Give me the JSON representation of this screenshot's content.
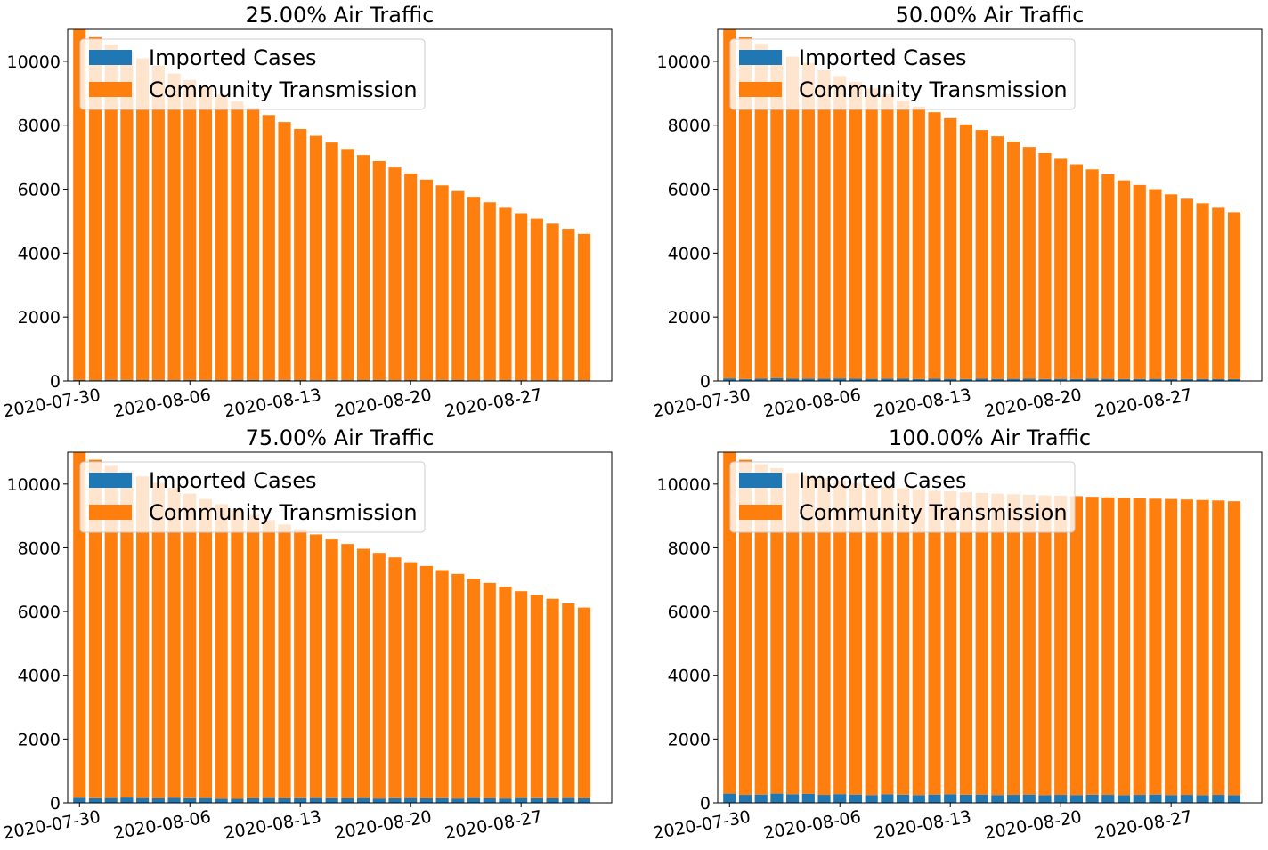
{
  "colors": {
    "imported": "#1f77b4",
    "community": "#ff7f0e",
    "axis": "#000000",
    "legend_bg": "#ffffff"
  },
  "legend": {
    "placement": "upper-left",
    "entries": [
      "Imported Cases",
      "Community Transmission"
    ]
  },
  "chart_data": [
    {
      "type": "bar",
      "stacked": true,
      "title": "25.00% Air Traffic",
      "x": [
        "2020-07-30",
        "2020-07-31",
        "2020-08-01",
        "2020-08-02",
        "2020-08-03",
        "2020-08-04",
        "2020-08-05",
        "2020-08-06",
        "2020-08-07",
        "2020-08-08",
        "2020-08-09",
        "2020-08-10",
        "2020-08-11",
        "2020-08-12",
        "2020-08-13",
        "2020-08-14",
        "2020-08-15",
        "2020-08-16",
        "2020-08-17",
        "2020-08-18",
        "2020-08-19",
        "2020-08-20",
        "2020-08-21",
        "2020-08-22",
        "2020-08-23",
        "2020-08-24",
        "2020-08-25",
        "2020-08-26",
        "2020-08-27",
        "2020-08-28",
        "2020-08-29",
        "2020-08-30",
        "2020-08-31"
      ],
      "xticks": [
        "2020-07-30",
        "2020-08-06",
        "2020-08-13",
        "2020-08-20",
        "2020-08-27"
      ],
      "ylim": [
        0,
        11000
      ],
      "yticks": [
        0,
        2000,
        4000,
        6000,
        8000,
        10000
      ],
      "series": [
        {
          "name": "Imported Cases",
          "values": [
            30,
            25,
            35,
            30,
            28,
            30,
            26,
            32,
            30,
            25,
            28,
            30,
            26,
            30,
            28,
            24,
            30,
            26,
            28,
            30,
            25,
            28,
            26,
            30,
            28,
            24,
            26,
            28,
            25,
            24,
            26,
            22,
            24
          ]
        },
        {
          "name": "Community Transmission",
          "values": [
            10970,
            10730,
            10495,
            10290,
            10062,
            9838,
            9594,
            9388,
            9160,
            8935,
            8712,
            8510,
            8294,
            8070,
            7852,
            7646,
            7430,
            7234,
            7042,
            6850,
            6655,
            6462,
            6274,
            6090,
            5912,
            5736,
            5564,
            5392,
            5225,
            5056,
            4894,
            4738,
            4576
          ]
        }
      ],
      "legend_placement": "upper-left"
    },
    {
      "type": "bar",
      "stacked": true,
      "title": "50.00% Air Traffic",
      "x": [
        "2020-07-30",
        "2020-07-31",
        "2020-08-01",
        "2020-08-02",
        "2020-08-03",
        "2020-08-04",
        "2020-08-05",
        "2020-08-06",
        "2020-08-07",
        "2020-08-08",
        "2020-08-09",
        "2020-08-10",
        "2020-08-11",
        "2020-08-12",
        "2020-08-13",
        "2020-08-14",
        "2020-08-15",
        "2020-08-16",
        "2020-08-17",
        "2020-08-18",
        "2020-08-19",
        "2020-08-20",
        "2020-08-21",
        "2020-08-22",
        "2020-08-23",
        "2020-08-24",
        "2020-08-25",
        "2020-08-26",
        "2020-08-27",
        "2020-08-28",
        "2020-08-29",
        "2020-08-30",
        "2020-08-31"
      ],
      "xticks": [
        "2020-07-30",
        "2020-08-06",
        "2020-08-13",
        "2020-08-20",
        "2020-08-27"
      ],
      "ylim": [
        0,
        11000
      ],
      "yticks": [
        0,
        2000,
        4000,
        6000,
        8000,
        10000
      ],
      "series": [
        {
          "name": "Imported Cases",
          "values": [
            80,
            60,
            70,
            85,
            70,
            75,
            68,
            80,
            72,
            66,
            74,
            70,
            62,
            70,
            66,
            60,
            70,
            64,
            66,
            70,
            60,
            66,
            62,
            70,
            66,
            58,
            62,
            66,
            60,
            58,
            62,
            56,
            58
          ]
        },
        {
          "name": "Community Transmission",
          "values": [
            10920,
            10690,
            10480,
            10265,
            10080,
            9875,
            9652,
            9460,
            9283,
            9089,
            8896,
            8705,
            8523,
            8335,
            8154,
            7965,
            7780,
            7591,
            7424,
            7250,
            7070,
            6884,
            6718,
            6550,
            6399,
            6217,
            6068,
            5934,
            5780,
            5642,
            5498,
            5364,
            5222
          ]
        }
      ],
      "legend_placement": "upper-left"
    },
    {
      "type": "bar",
      "stacked": true,
      "title": "75.00% Air Traffic",
      "x": [
        "2020-07-30",
        "2020-07-31",
        "2020-08-01",
        "2020-08-02",
        "2020-08-03",
        "2020-08-04",
        "2020-08-05",
        "2020-08-06",
        "2020-08-07",
        "2020-08-08",
        "2020-08-09",
        "2020-08-10",
        "2020-08-11",
        "2020-08-12",
        "2020-08-13",
        "2020-08-14",
        "2020-08-15",
        "2020-08-16",
        "2020-08-17",
        "2020-08-18",
        "2020-08-19",
        "2020-08-20",
        "2020-08-21",
        "2020-08-22",
        "2020-08-23",
        "2020-08-24",
        "2020-08-25",
        "2020-08-26",
        "2020-08-27",
        "2020-08-28",
        "2020-08-29",
        "2020-08-30",
        "2020-08-31"
      ],
      "xticks": [
        "2020-07-30",
        "2020-08-06",
        "2020-08-13",
        "2020-08-20",
        "2020-08-27"
      ],
      "ylim": [
        0,
        11000
      ],
      "yticks": [
        0,
        2000,
        4000,
        6000,
        8000,
        10000
      ],
      "series": [
        {
          "name": "Imported Cases",
          "values": [
            160,
            145,
            150,
            165,
            150,
            140,
            155,
            145,
            150,
            130,
            125,
            140,
            150,
            140,
            145,
            150,
            145,
            140,
            150,
            135,
            145,
            150,
            140,
            145,
            135,
            150,
            140,
            135,
            150,
            145,
            140,
            150,
            140
          ]
        },
        {
          "name": "Community Transmission",
          "values": [
            10840,
            10615,
            10420,
            10235,
            10090,
            9900,
            9725,
            9555,
            9380,
            9240,
            9095,
            8890,
            8720,
            8590,
            8435,
            8270,
            8115,
            7980,
            7820,
            7705,
            7555,
            7400,
            7290,
            7155,
            7045,
            6880,
            6760,
            6645,
            6490,
            6375,
            6260,
            6105,
            5985
          ]
        }
      ],
      "legend_placement": "upper-left"
    },
    {
      "type": "bar",
      "stacked": true,
      "title": "100.00% Air Traffic",
      "x": [
        "2020-07-30",
        "2020-07-31",
        "2020-08-01",
        "2020-08-02",
        "2020-08-03",
        "2020-08-04",
        "2020-08-05",
        "2020-08-06",
        "2020-08-07",
        "2020-08-08",
        "2020-08-09",
        "2020-08-10",
        "2020-08-11",
        "2020-08-12",
        "2020-08-13",
        "2020-08-14",
        "2020-08-15",
        "2020-08-16",
        "2020-08-17",
        "2020-08-18",
        "2020-08-19",
        "2020-08-20",
        "2020-08-21",
        "2020-08-22",
        "2020-08-23",
        "2020-08-24",
        "2020-08-25",
        "2020-08-26",
        "2020-08-27",
        "2020-08-28",
        "2020-08-29",
        "2020-08-30",
        "2020-08-31"
      ],
      "xticks": [
        "2020-07-30",
        "2020-08-06",
        "2020-08-13",
        "2020-08-20",
        "2020-08-27"
      ],
      "ylim": [
        0,
        11000
      ],
      "yticks": [
        0,
        2000,
        4000,
        6000,
        8000,
        10000
      ],
      "series": [
        {
          "name": "Imported Cases",
          "values": [
            290,
            250,
            260,
            290,
            270,
            280,
            250,
            275,
            260,
            245,
            270,
            255,
            245,
            260,
            270,
            255,
            260,
            245,
            250,
            260,
            240,
            250,
            245,
            255,
            250,
            240,
            250,
            260,
            245,
            250,
            240,
            250,
            240
          ]
        },
        {
          "name": "Community Transmission",
          "values": [
            10710,
            10510,
            10360,
            10210,
            10080,
            9985,
            9945,
            9825,
            9770,
            9735,
            9640,
            9615,
            9595,
            9530,
            9500,
            9485,
            9460,
            9455,
            9430,
            9405,
            9405,
            9385,
            9375,
            9345,
            9330,
            9320,
            9300,
            9280,
            9285,
            9265,
            9260,
            9235,
            9220
          ]
        }
      ],
      "legend_placement": "upper-left"
    }
  ]
}
